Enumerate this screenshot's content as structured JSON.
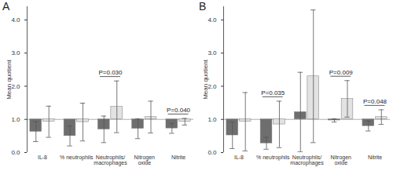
{
  "chart_data": [
    {
      "type": "bar",
      "title": "A",
      "categories": [
        "IL-8",
        "% neutrophils",
        "Neutrophils/macrophages",
        "Nitrogen oxide",
        "Nitrite"
      ],
      "ylabel": "Mean quotient",
      "ylim": [
        0,
        4.4
      ],
      "yticks": [
        0,
        1,
        2,
        3,
        4
      ],
      "baseline": 1,
      "series": [
        {
          "color": "#6e6e6e",
          "values": [
            0.63,
            0.5,
            0.7,
            0.72,
            0.73
          ],
          "errors": [
            0.3,
            0.3,
            0.4,
            0.3,
            0.15
          ]
        },
        {
          "color": "#e2e2e2",
          "values": [
            0.93,
            0.92,
            1.38,
            1.07,
            0.93
          ],
          "errors": [
            0.47,
            0.57,
            0.78,
            0.48,
            0.1
          ]
        }
      ],
      "annotations": [
        {
          "category": "Neutrophils/macrophages",
          "text": "P=0.030"
        },
        {
          "category": "Nitrite",
          "text": "P=0.040"
        }
      ]
    },
    {
      "type": "bar",
      "title": "B",
      "categories": [
        "IL-8",
        "% neutrophils",
        "Neutrophils/macrophages",
        "Nitrogen oxide",
        "Nitrite"
      ],
      "ylabel": "Mean quotient",
      "ylim": [
        0,
        4.4
      ],
      "yticks": [
        0,
        1,
        2,
        3,
        4
      ],
      "baseline": 1,
      "series": [
        {
          "color": "#6e6e6e",
          "values": [
            0.52,
            0.28,
            1.22,
            0.97,
            0.8
          ],
          "errors": [
            0.4,
            0.18,
            1.2,
            0.05,
            0.15
          ]
        },
        {
          "color": "#e2e2e2",
          "values": [
            0.93,
            0.85,
            2.3,
            1.62,
            1.07
          ],
          "errors": [
            0.88,
            0.7,
            2.0,
            0.55,
            0.22
          ]
        }
      ],
      "annotations": [
        {
          "category": "% neutrophils",
          "text": "P=0.035"
        },
        {
          "category": "Nitrogen oxide",
          "text": "P=0.009"
        },
        {
          "category": "Nitrite",
          "text": "P=0.048"
        }
      ]
    }
  ]
}
